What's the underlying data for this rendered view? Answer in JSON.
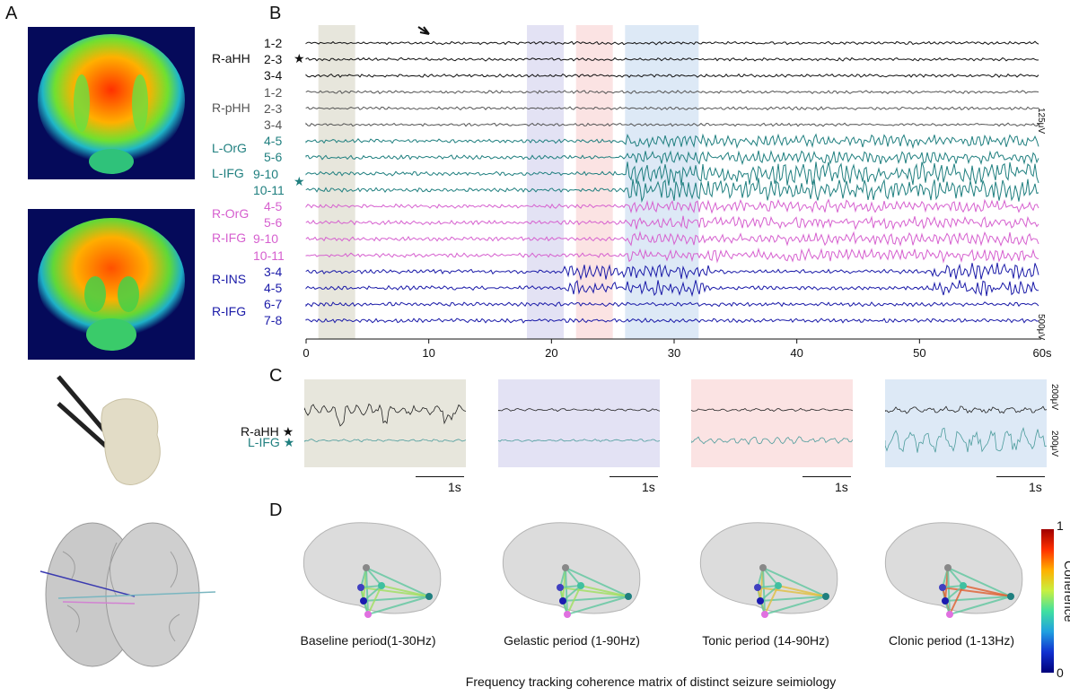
{
  "panels": {
    "a": "A",
    "b": "B",
    "c": "C",
    "d": "D"
  },
  "colors": {
    "black": "#111111",
    "gray": "#555555",
    "teal": "#1f7f7f",
    "pink": "#d660cf",
    "blue": "#1a1aa8",
    "band_baseline": "#e7e6dc",
    "band_gelastic": "#e3e2f4",
    "band_tonic": "#fbe3e3",
    "band_clonic": "#dde9f6"
  },
  "eeg": {
    "regions": [
      {
        "name": "R-aHH",
        "color": "black",
        "star": true,
        "channels": [
          "1-2",
          "2-3",
          "3-4"
        ]
      },
      {
        "name": "R-pHH",
        "color": "gray",
        "star": false,
        "channels": [
          "1-2",
          "2-3",
          "3-4"
        ]
      },
      {
        "name": "L-OrG",
        "color": "teal",
        "star": false,
        "channels": [
          "4-5",
          "5-6"
        ]
      },
      {
        "name": "L-IFG",
        "color": "teal",
        "star": true,
        "channels": [
          "9-10",
          "10-11"
        ]
      },
      {
        "name": "R-OrG",
        "color": "pink",
        "star": false,
        "channels": [
          "4-5",
          "5-6"
        ]
      },
      {
        "name": "R-IFG",
        "color": "pink",
        "star": false,
        "channels": [
          "9-10",
          "10-11"
        ]
      },
      {
        "name": "R-INS",
        "color": "blue",
        "star": false,
        "channels": [
          "3-4",
          "4-5"
        ]
      },
      {
        "name": "R-IFG",
        "color": "blue",
        "star": false,
        "channels": [
          "6-7",
          "7-8"
        ]
      }
    ],
    "x_axis": {
      "ticks": [
        0,
        10,
        20,
        30,
        40,
        50,
        60
      ],
      "unit_label": "60s",
      "range": [
        0,
        60
      ]
    },
    "bands": [
      {
        "start": 1,
        "end": 4,
        "color": "band_baseline"
      },
      {
        "start": 18,
        "end": 21,
        "color": "band_gelastic"
      },
      {
        "start": 22,
        "end": 25,
        "color": "band_tonic"
      },
      {
        "start": 26,
        "end": 32,
        "color": "band_clonic"
      }
    ],
    "scale_top": "125μV",
    "scale_bottom": "500μV"
  },
  "zoom": {
    "labels": [
      {
        "name": "R-aHH",
        "color": "black"
      },
      {
        "name": "L-IFG",
        "color": "teal"
      }
    ],
    "windows": [
      {
        "color": "band_baseline",
        "time_label": "1s"
      },
      {
        "color": "band_gelastic",
        "time_label": "1s"
      },
      {
        "color": "band_tonic",
        "time_label": "1s"
      },
      {
        "color": "band_clonic",
        "time_label": "1s"
      }
    ],
    "scale_top": "200μV",
    "scale_bottom": "200μV"
  },
  "coherence": {
    "periods": [
      "Baseline period(1-30Hz)",
      "Gelastic period (1-90Hz)",
      "Tonic period (14-90Hz)",
      "Clonic period (1-13Hz)"
    ],
    "caption": "Frequency tracking coherence matrix of distinct seizure seimiology",
    "colorbar": {
      "title": "Coherence",
      "max": "1",
      "min": "0"
    }
  }
}
